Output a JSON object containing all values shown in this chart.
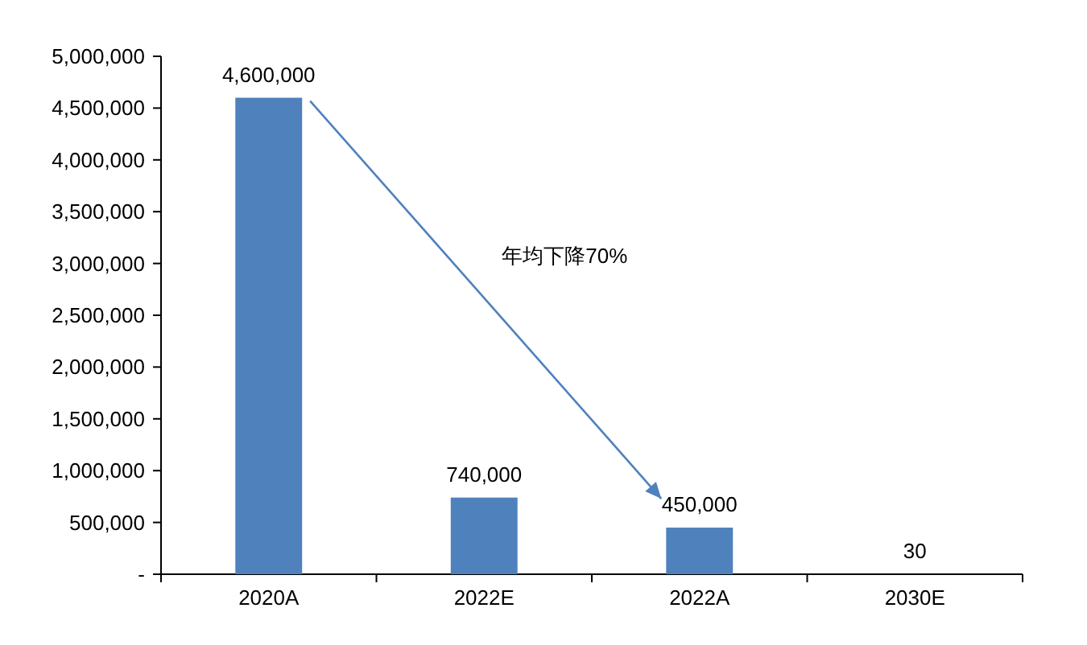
{
  "chart_data": {
    "type": "bar",
    "categories": [
      "2020A",
      "2022E",
      "2022A",
      "2030E"
    ],
    "values": [
      4600000,
      740000,
      450000,
      30
    ],
    "value_labels": [
      "4,600,000",
      "740,000",
      "450,000",
      "30"
    ],
    "color": "#4f81bd",
    "ylim": [
      0,
      5000000
    ],
    "yticks": [
      {
        "value": 0,
        "label": "-"
      },
      {
        "value": 500000,
        "label": "500,000"
      },
      {
        "value": 1000000,
        "label": "1,000,000"
      },
      {
        "value": 1500000,
        "label": "1,500,000"
      },
      {
        "value": 2000000,
        "label": "2,000,000"
      },
      {
        "value": 2500000,
        "label": "2,500,000"
      },
      {
        "value": 3000000,
        "label": "3,000,000"
      },
      {
        "value": 3500000,
        "label": "3,500,000"
      },
      {
        "value": 4000000,
        "label": "4,000,000"
      },
      {
        "value": 4500000,
        "label": "4,500,000"
      },
      {
        "value": 5000000,
        "label": "5,000,000"
      }
    ],
    "annotations": [
      "年均下降70%"
    ]
  }
}
